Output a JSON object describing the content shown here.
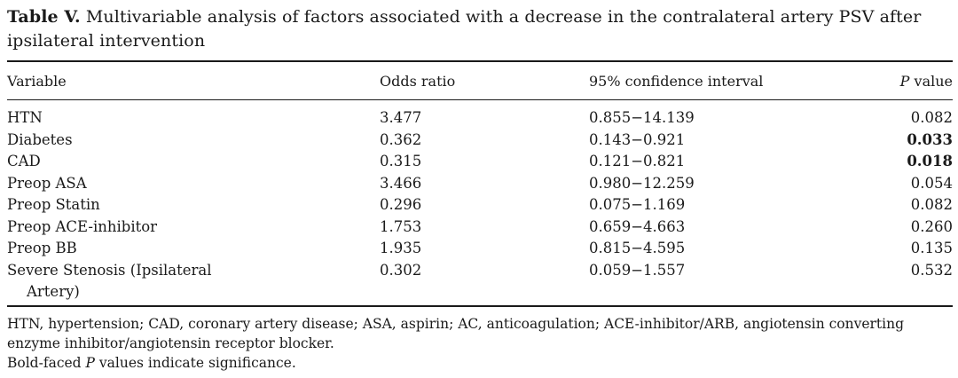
{
  "caption": {
    "label": "Table V.",
    "text": "Multivariable analysis of factors associated with a decrease in the contralateral artery PSV after ipsilateral intervention"
  },
  "table": {
    "headers": {
      "variable": "Variable",
      "odds_ratio": "Odds ratio",
      "ci": "95% confidence interval",
      "p_italic": "P",
      "p_rest": " value"
    },
    "rows": [
      {
        "variable": "HTN",
        "odds_ratio": "3.477",
        "ci": "0.855−14.139",
        "p": "0.082",
        "significant": false
      },
      {
        "variable": "Diabetes",
        "odds_ratio": "0.362",
        "ci": "0.143−0.921",
        "p": "0.033",
        "significant": true
      },
      {
        "variable": "CAD",
        "odds_ratio": "0.315",
        "ci": "0.121−0.821",
        "p": "0.018",
        "significant": true
      },
      {
        "variable": "Preop ASA",
        "odds_ratio": "3.466",
        "ci": "0.980−12.259",
        "p": "0.054",
        "significant": false
      },
      {
        "variable": "Preop Statin",
        "odds_ratio": "0.296",
        "ci": "0.075−1.169",
        "p": "0.082",
        "significant": false
      },
      {
        "variable": "Preop ACE-inhibitor",
        "odds_ratio": "1.753",
        "ci": "0.659−4.663",
        "p": "0.260",
        "significant": false
      },
      {
        "variable": "Preop BB",
        "odds_ratio": "1.935",
        "ci": "0.815−4.595",
        "p": "0.135",
        "significant": false
      },
      {
        "variable_line1": "Severe Stenosis (Ipsilateral",
        "variable_line2": "Artery)",
        "odds_ratio": "0.302",
        "ci": "0.059−1.557",
        "p": "0.532",
        "significant": false
      }
    ]
  },
  "footnotes": {
    "abbreviations": "HTN, hypertension; CAD, coronary artery disease; ASA, aspirin; AC, anticoagulation; ACE-inhibitor/ARB, angiotensin converting enzyme inhibitor/angiotensin receptor blocker.",
    "significance_pre": "Bold-faced ",
    "significance_italic": "P",
    "significance_post": " values indicate significance."
  }
}
